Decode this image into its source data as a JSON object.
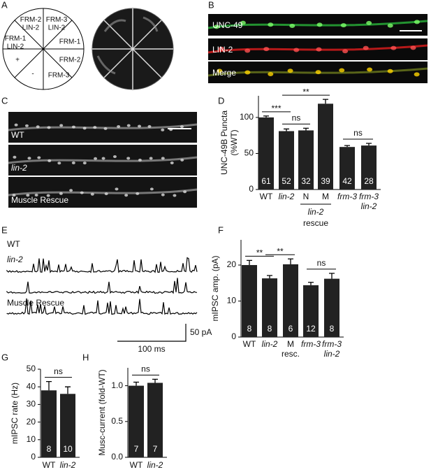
{
  "panel_labels": [
    "A",
    "B",
    "C",
    "D",
    "E",
    "F",
    "G",
    "H"
  ],
  "panel_a": {
    "sectors": [
      "FRM-2\nLIN-2",
      "FRM-3\nLIN-2",
      "FRM-1\nLIN-2",
      "FRM-1",
      "+",
      "FRM-2",
      "-",
      "FRM-3"
    ]
  },
  "panel_b": {
    "channels": [
      "UNC-49",
      "LIN-2",
      "Merge"
    ]
  },
  "panel_c": {
    "strips": [
      "WT",
      "lin-2",
      "Muscle Rescue"
    ]
  },
  "panel_e": {
    "traces": [
      "WT",
      "lin-2",
      "Muscle Rescue"
    ],
    "scale_y": "50 pA",
    "scale_x": "100 ms"
  },
  "chart_data": [
    {
      "type": "bar",
      "ylabel": "UNC-49B Puncta\n(%WT)",
      "categories": [
        "WT",
        "lin-2",
        "N",
        "M",
        "frm-3",
        "frm-3\nlin-2"
      ],
      "group_label": [
        "lin-2",
        "rescue"
      ],
      "values": [
        100,
        81,
        82,
        119,
        59,
        61
      ],
      "errors": [
        2,
        3,
        3,
        6,
        2,
        3
      ],
      "n_labels": [
        "61",
        "52",
        "32",
        "39",
        "42",
        "28"
      ],
      "significance": [
        "***",
        "ns",
        "**",
        "ns"
      ],
      "color": "#222222",
      "ylim": [
        0,
        130
      ],
      "yticks": [
        0,
        50,
        100
      ]
    },
    {
      "type": "bar",
      "ylabel": "mIPSC amp. (pA)",
      "categories": [
        "WT",
        "lin-2",
        "M\nresc.",
        "frm-3",
        "frm-3\nlin-2"
      ],
      "values": [
        20,
        16.3,
        20.2,
        14.4,
        16.2
      ],
      "errors": [
        1.3,
        0.8,
        1.5,
        0.8,
        1.5
      ],
      "n_labels": [
        "8",
        "8",
        "6",
        "12",
        "8"
      ],
      "significance": [
        "**",
        "**",
        "ns"
      ],
      "color": "#222222",
      "ylim": [
        0,
        27
      ],
      "yticks": [
        0,
        10,
        20
      ]
    },
    {
      "type": "bar",
      "ylabel": "mIPSC rate (Hz)",
      "categories": [
        "WT",
        "lin-2"
      ],
      "values": [
        38,
        36
      ],
      "errors": [
        5,
        4
      ],
      "n_labels": [
        "8",
        "10"
      ],
      "significance": [
        "ns"
      ],
      "color": "#222222",
      "ylim": [
        0,
        50
      ],
      "yticks": [
        0,
        10,
        20,
        30,
        40,
        50
      ]
    },
    {
      "type": "bar",
      "ylabel": "Musc-current (fold-WT)",
      "categories": [
        "WT",
        "lin-2"
      ],
      "values": [
        1.0,
        1.04
      ],
      "errors": [
        0.05,
        0.05
      ],
      "n_labels": [
        "7",
        "7"
      ],
      "significance": [
        "ns"
      ],
      "color": "#222222",
      "ylim": [
        0,
        1.25
      ],
      "yticks": [
        {
          "value": 0,
          "label": "0.0"
        },
        {
          "value": 0.5,
          "label": "0.5"
        },
        {
          "value": 1,
          "label": "1.0"
        }
      ]
    }
  ]
}
